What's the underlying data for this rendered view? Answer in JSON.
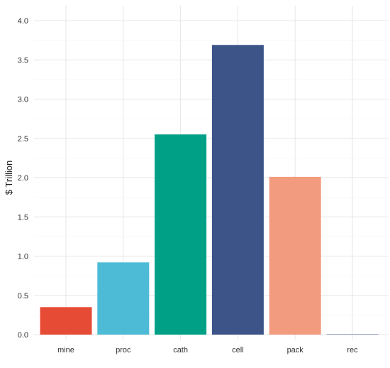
{
  "chart_data": {
    "type": "bar",
    "categories": [
      "mine",
      "proc",
      "cath",
      "cell",
      "pack",
      "rec"
    ],
    "values": [
      0.35,
      0.92,
      2.55,
      3.69,
      2.01,
      0.005
    ],
    "colors": [
      "#E64B35",
      "#4DBBD5",
      "#00A087",
      "#3C5488",
      "#F39B7F",
      "#8491B4"
    ],
    "ylabel": "$ Trillion",
    "xlabel": "",
    "title": "",
    "ylim": [
      0,
      4.2
    ],
    "yticks": [
      0.0,
      0.5,
      1.0,
      1.5,
      2.0,
      2.5,
      3.0,
      3.5,
      4.0
    ],
    "ytick_labels": [
      "0.0",
      "0.5",
      "1.0",
      "1.5",
      "2.0",
      "2.5",
      "3.0",
      "3.5",
      "4.0"
    ],
    "grid": true,
    "legend": "none"
  }
}
